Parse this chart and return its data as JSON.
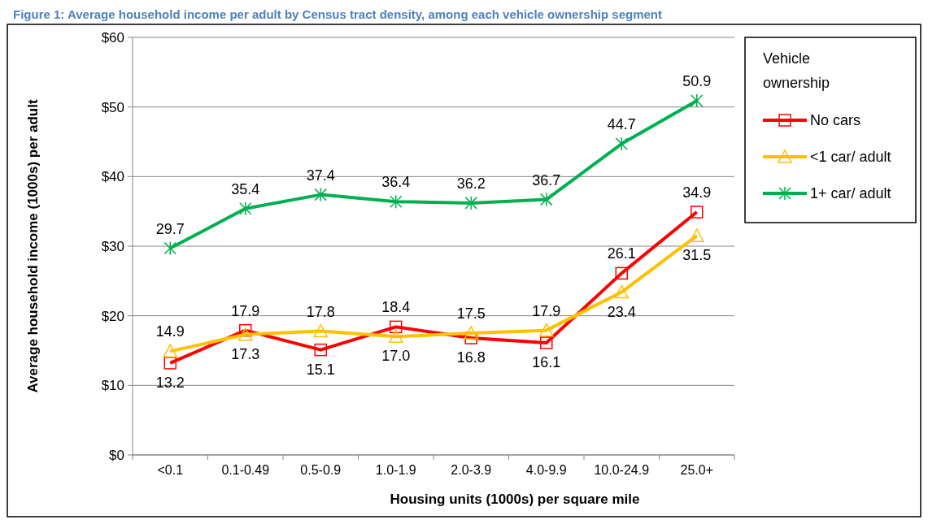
{
  "chart_data": {
    "type": "line",
    "title": "Figure 1: Average household income per adult by Census tract density, among each vehicle ownership segment",
    "xlabel": "Housing units (1000s) per square mile",
    "ylabel": "Average household income (1000s) per adult",
    "legend_title": "Vehicle ownership",
    "categories": [
      "<0.1",
      "0.1-0.49",
      "0.5-0.9",
      "1.0-1.9",
      "2.0-3.9",
      "4.0-9.9",
      "10.0-24.9",
      "25.0+"
    ],
    "series": [
      {
        "name": "No cars",
        "color": "#ff0000",
        "marker": "square",
        "values": [
          13.2,
          17.9,
          15.1,
          18.4,
          16.8,
          16.1,
          26.1,
          34.9
        ],
        "value_labels": [
          "13.2",
          "17.9",
          "15.1",
          "18.4",
          "16.8",
          "16.1",
          "26.1",
          "34.9"
        ]
      },
      {
        "name": "<1  car/ adult",
        "color": "#ffc000",
        "marker": "triangle",
        "values": [
          14.9,
          17.3,
          17.8,
          17.0,
          17.5,
          17.9,
          23.4,
          31.5
        ],
        "value_labels": [
          "14.9",
          "17.3",
          "17.8",
          "17.0",
          "17.5",
          "17.9",
          "23.4",
          "31.5"
        ]
      },
      {
        "name": "1+ car/ adult",
        "color": "#00b050",
        "marker": "cross",
        "values": [
          29.7,
          35.4,
          37.4,
          36.4,
          36.2,
          36.7,
          44.7,
          50.9
        ],
        "value_labels": [
          "29.7",
          "35.4",
          "37.4",
          "36.4",
          "36.2",
          "36.7",
          "44.7",
          "50.9"
        ]
      }
    ],
    "ylim": [
      0,
      60
    ],
    "yticks": [
      {
        "value": 0,
        "label": "$0"
      },
      {
        "value": 10,
        "label": "$10"
      },
      {
        "value": 20,
        "label": "$20"
      },
      {
        "value": 30,
        "label": "$30"
      },
      {
        "value": 40,
        "label": "$40"
      },
      {
        "value": 50,
        "label": "$50"
      },
      {
        "value": 60,
        "label": "$60"
      }
    ],
    "grid": "y",
    "legend": "right",
    "line_style": "solid"
  }
}
